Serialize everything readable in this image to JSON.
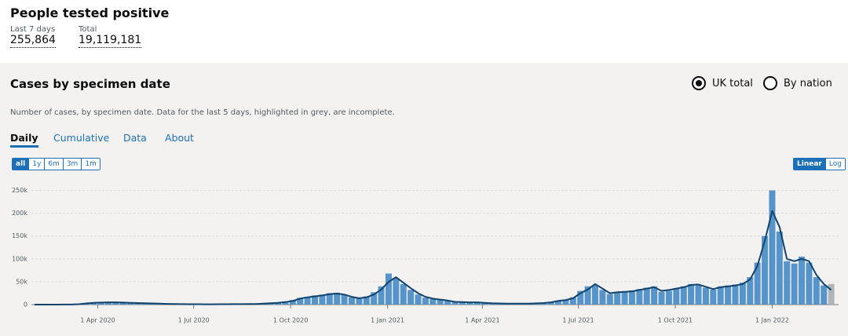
{
  "header": {
    "title": "People tested positive",
    "metrics": [
      {
        "label": "Last 7 days",
        "value": "255,864"
      },
      {
        "label": "Total",
        "value": "19,119,181"
      }
    ]
  },
  "card": {
    "title": "Cases by specimen date",
    "radios": [
      "UK total",
      "By nation"
    ],
    "description": "Number of cases, by specimen date. Data for the last 5 days, highlighted in grey, are incomplete.",
    "tabs": [
      "Daily",
      "Cumulative",
      "Data",
      "About"
    ],
    "ranges": [
      "all",
      "1y",
      "6m",
      "3m",
      "1m"
    ],
    "scales": [
      "Linear",
      "Log"
    ]
  },
  "chart_data": {
    "type": "bar",
    "log_scale": false,
    "grid": true,
    "x": [
      "2020-02-01",
      "2020-02-08",
      "2020-02-15",
      "2020-02-22",
      "2020-02-29",
      "2020-03-07",
      "2020-03-14",
      "2020-03-21",
      "2020-03-28",
      "2020-04-04",
      "2020-04-11",
      "2020-04-18",
      "2020-04-25",
      "2020-05-02",
      "2020-05-09",
      "2020-05-16",
      "2020-05-23",
      "2020-05-30",
      "2020-06-06",
      "2020-06-13",
      "2020-06-20",
      "2020-06-27",
      "2020-07-04",
      "2020-07-11",
      "2020-07-18",
      "2020-07-25",
      "2020-08-01",
      "2020-08-08",
      "2020-08-15",
      "2020-08-22",
      "2020-08-29",
      "2020-09-05",
      "2020-09-12",
      "2020-09-19",
      "2020-09-26",
      "2020-10-03",
      "2020-10-10",
      "2020-10-17",
      "2020-10-24",
      "2020-10-31",
      "2020-11-07",
      "2020-11-14",
      "2020-11-21",
      "2020-11-28",
      "2020-12-05",
      "2020-12-12",
      "2020-12-19",
      "2020-12-26",
      "2021-01-02",
      "2021-01-09",
      "2021-01-16",
      "2021-01-23",
      "2021-01-30",
      "2021-02-06",
      "2021-02-13",
      "2021-02-20",
      "2021-02-27",
      "2021-03-06",
      "2021-03-13",
      "2021-03-20",
      "2021-03-27",
      "2021-04-03",
      "2021-04-10",
      "2021-04-17",
      "2021-04-24",
      "2021-05-01",
      "2021-05-08",
      "2021-05-15",
      "2021-05-22",
      "2021-05-29",
      "2021-06-05",
      "2021-06-12",
      "2021-06-19",
      "2021-06-26",
      "2021-07-03",
      "2021-07-10",
      "2021-07-17",
      "2021-07-24",
      "2021-07-31",
      "2021-08-07",
      "2021-08-14",
      "2021-08-21",
      "2021-08-28",
      "2021-09-04",
      "2021-09-11",
      "2021-09-18",
      "2021-09-25",
      "2021-10-02",
      "2021-10-09",
      "2021-10-16",
      "2021-10-23",
      "2021-10-30",
      "2021-11-06",
      "2021-11-13",
      "2021-11-20",
      "2021-11-27",
      "2021-12-04",
      "2021-12-11",
      "2021-12-18",
      "2021-12-25",
      "2022-01-01",
      "2022-01-08",
      "2022-01-15",
      "2022-01-22",
      "2022-01-29",
      "2022-02-05",
      "2022-02-12",
      "2022-02-19",
      "2022-02-26"
    ],
    "series": [
      {
        "color": "#5694ca",
        "values": [
          0,
          0,
          0,
          0,
          200,
          300,
          1000,
          3000,
          4500,
          5000,
          5500,
          4500,
          4000,
          4200,
          3300,
          2800,
          2400,
          1800,
          1400,
          1100,
          900,
          800,
          700,
          650,
          600,
          750,
          850,
          1000,
          1000,
          1300,
          1500,
          2500,
          3500,
          4500,
          6000,
          10000,
          15000,
          17000,
          20000,
          22000,
          25000,
          26000,
          21000,
          16000,
          15000,
          18000,
          27000,
          40000,
          68000,
          58000,
          45000,
          32000,
          22000,
          15000,
          12000,
          10000,
          8000,
          5500,
          5000,
          4800,
          4600,
          3500,
          2800,
          2300,
          2100,
          2000,
          2100,
          2400,
          3000,
          4000,
          5500,
          9000,
          11000,
          16000,
          30000,
          40000,
          42000,
          32000,
          23000,
          28000,
          27000,
          31000,
          34000,
          37000,
          40000,
          28000,
          30000,
          36000,
          40000,
          45000,
          42000,
          37000,
          33000,
          40000,
          42000,
          44000,
          48000,
          60000,
          92000,
          150000,
          250000,
          160000,
          95000,
          90000,
          105000,
          92000,
          60000,
          42000,
          null
        ]
      },
      {
        "color": "#b1b4b6",
        "values": [
          null,
          null,
          null,
          null,
          null,
          null,
          null,
          null,
          null,
          null,
          null,
          null,
          null,
          null,
          null,
          null,
          null,
          null,
          null,
          null,
          null,
          null,
          null,
          null,
          null,
          null,
          null,
          null,
          null,
          null,
          null,
          null,
          null,
          null,
          null,
          null,
          null,
          null,
          null,
          null,
          null,
          null,
          null,
          null,
          null,
          null,
          null,
          null,
          null,
          null,
          null,
          null,
          null,
          null,
          null,
          null,
          null,
          null,
          null,
          null,
          null,
          null,
          null,
          null,
          null,
          null,
          null,
          null,
          null,
          null,
          null,
          null,
          null,
          null,
          null,
          null,
          null,
          null,
          null,
          null,
          null,
          null,
          null,
          null,
          null,
          null,
          null,
          null,
          null,
          null,
          null,
          null,
          null,
          null,
          null,
          null,
          null,
          null,
          null,
          null,
          null,
          null,
          null,
          null,
          null,
          null,
          null,
          null,
          45000
        ]
      },
      {
        "type": "line",
        "color": "#12436d",
        "values": [
          0,
          0,
          0,
          0,
          100,
          200,
          800,
          2500,
          4000,
          4500,
          5000,
          5000,
          4500,
          4000,
          3500,
          3000,
          2500,
          2000,
          1500,
          1200,
          1000,
          900,
          800,
          700,
          700,
          800,
          900,
          1000,
          1100,
          1200,
          1300,
          2000,
          3000,
          4000,
          5500,
          8000,
          13000,
          16000,
          18000,
          20000,
          23000,
          24000,
          22000,
          17000,
          14000,
          16000,
          22000,
          33000,
          50000,
          60000,
          48000,
          36000,
          25000,
          17000,
          13000,
          11000,
          9000,
          6000,
          5500,
          5000,
          5000,
          4000,
          3000,
          2500,
          2300,
          2200,
          2200,
          2300,
          2800,
          3500,
          5000,
          8000,
          10000,
          14000,
          25000,
          33000,
          45000,
          35000,
          25000,
          27000,
          28000,
          29000,
          32000,
          35000,
          38000,
          30000,
          32000,
          35000,
          38000,
          43000,
          44000,
          39000,
          34000,
          38000,
          40000,
          42000,
          45000,
          55000,
          85000,
          140000,
          205000,
          170000,
          100000,
          95000,
          100000,
          95000,
          65000,
          45000,
          32000
        ]
      }
    ],
    "xlim": [
      "2020-01-29",
      "2022-03-05"
    ],
    "xticks": [
      {
        "value": "2020-04-01",
        "label": "1 Apr 2020"
      },
      {
        "value": "2020-07-01",
        "label": "1 Jul 2020"
      },
      {
        "value": "2020-10-01",
        "label": "1 Oct 2020"
      },
      {
        "value": "2021-01-01",
        "label": "1 Jan 2021"
      },
      {
        "value": "2021-04-01",
        "label": "1 Apr 2021"
      },
      {
        "value": "2021-07-01",
        "label": "1 Jul 2021"
      },
      {
        "value": "2021-10-01",
        "label": "1 Oct 2021"
      },
      {
        "value": "2022-01-01",
        "label": "1 Jan 2022"
      }
    ],
    "ylim": [
      0,
      275000
    ],
    "yticks": [
      0,
      {
        "value": 50000,
        "label": "50k"
      },
      {
        "value": 100000,
        "label": "100k"
      },
      {
        "value": 150000,
        "label": "150k"
      },
      {
        "value": 200000,
        "label": "200k"
      },
      {
        "value": 250000,
        "label": "250k"
      }
    ]
  }
}
